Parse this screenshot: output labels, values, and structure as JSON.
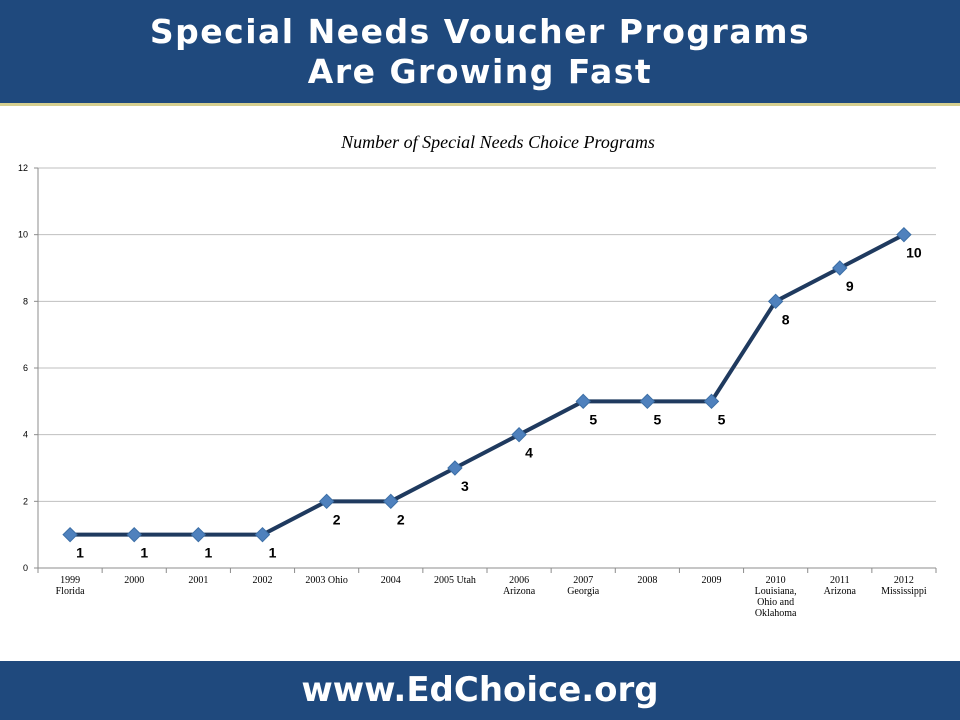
{
  "header": {
    "title_line1": "Special Needs Voucher Programs",
    "title_line2": "Are Growing Fast"
  },
  "footer": {
    "url": "www.EdChoice.org"
  },
  "colors": {
    "banner": "#1f497d",
    "line": "#1f3a5f",
    "marker": "#4f81bd"
  },
  "chart_data": {
    "type": "line",
    "title": "Number of Special Needs Choice Programs",
    "xlabel": "",
    "ylabel": "",
    "ylim": [
      0,
      12
    ],
    "yticks": [
      0,
      2,
      4,
      6,
      8,
      10,
      12
    ],
    "grid": true,
    "legend": "none",
    "categories": [
      [
        "1999",
        "Florida"
      ],
      [
        "2000"
      ],
      [
        "2001"
      ],
      [
        "2002"
      ],
      [
        "2003 Ohio"
      ],
      [
        "2004"
      ],
      [
        "2005 Utah"
      ],
      [
        "2006",
        "Arizona"
      ],
      [
        "2007",
        "Georgia"
      ],
      [
        "2008"
      ],
      [
        "2009"
      ],
      [
        "2010",
        "Louisiana,",
        "Ohio and",
        "Oklahoma"
      ],
      [
        "2011",
        "Arizona"
      ],
      [
        "2012",
        "Mississippi"
      ]
    ],
    "series": [
      {
        "values": [
          1,
          1,
          1,
          1,
          2,
          2,
          3,
          4,
          5,
          5,
          5,
          8,
          9,
          10
        ]
      }
    ],
    "data_labels": [
      "1",
      "1",
      "1",
      "1",
      "2",
      "2",
      "3",
      "4",
      "5",
      "5",
      "5",
      "8",
      "9",
      "10"
    ]
  }
}
